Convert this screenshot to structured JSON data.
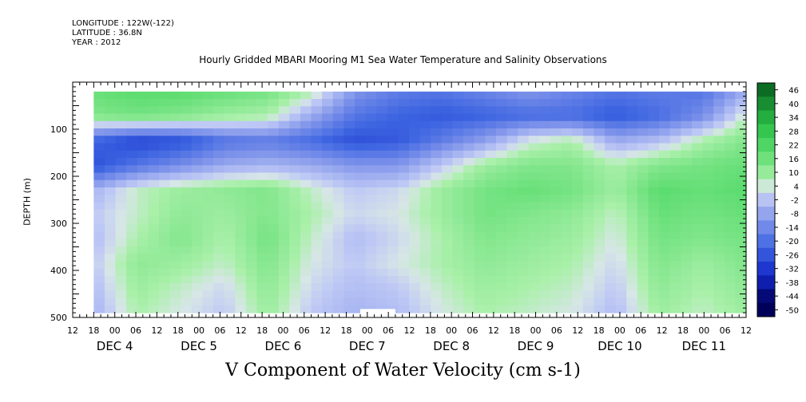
{
  "header": {
    "longitude": "LONGITUDE : 122W(-122)",
    "latitude": "LATITUDE : 36.8N",
    "year": "YEAR : 2012"
  },
  "chart_data": {
    "type": "heatmap",
    "title": "Hourly Gridded MBARI Mooring M1 Sea Water Temperature and Salinity Observations",
    "xlabel": "V Component of Water Velocity (cm s-1)",
    "ylabel": "DEPTH (m)",
    "y_ticks": [
      "100",
      "200",
      "300",
      "400",
      "500"
    ],
    "ylim": [
      500,
      0
    ],
    "y_data_range": [
      20,
      490
    ],
    "x_hour_ticks": [
      "12",
      "18",
      "00",
      "06",
      "12",
      "18",
      "00",
      "06",
      "12",
      "18",
      "00",
      "06",
      "12",
      "18",
      "00",
      "06",
      "12",
      "18",
      "00",
      "06",
      "12",
      "18",
      "00",
      "06",
      "12",
      "18",
      "00",
      "06",
      "12",
      "18",
      "00",
      "06",
      "12"
    ],
    "x_day_labels": [
      "DEC 4",
      "DEC 5",
      "DEC 6",
      "DEC 7",
      "DEC 8",
      "DEC 9",
      "DEC 10",
      "DEC 11"
    ],
    "xlim": [
      "2012-12-03T12:00",
      "2012-12-11T12:00"
    ],
    "x_data_range": [
      "2012-12-03T18:00",
      "2012-12-11T12:00"
    ],
    "colorbar": {
      "labels": [
        "46",
        "40",
        "34",
        "28",
        "22",
        "16",
        "10",
        "4",
        "-2",
        "-8",
        "-14",
        "-20",
        "-26",
        "-32",
        "-38",
        "-44",
        "-50"
      ],
      "min": -50,
      "max": 50
    },
    "value_grid": {
      "depths": [
        25,
        75,
        125,
        175,
        225,
        275,
        325,
        375,
        425,
        475
      ],
      "times": [
        "2012-12-03T18:00",
        "2012-12-04T06:00",
        "2012-12-04T18:00",
        "2012-12-05T06:00",
        "2012-12-05T18:00",
        "2012-12-06T06:00",
        "2012-12-06T18:00",
        "2012-12-07T06:00",
        "2012-12-07T18:00",
        "2012-12-08T06:00",
        "2012-12-08T18:00",
        "2012-12-09T06:00",
        "2012-12-09T18:00",
        "2012-12-10T06:00",
        "2012-12-10T18:00",
        "2012-12-11T06:00"
      ],
      "values": [
        [
          14,
          16,
          16,
          14,
          12,
          4,
          -14,
          -20,
          -22,
          -18,
          -14,
          -18,
          -22,
          -20,
          -22,
          -10
        ],
        [
          10,
          12,
          10,
          6,
          4,
          -10,
          -22,
          -26,
          -28,
          -26,
          -24,
          -24,
          -28,
          -24,
          -16,
          2
        ],
        [
          -26,
          -32,
          -30,
          -22,
          -20,
          -24,
          -30,
          -28,
          -20,
          -12,
          0,
          4,
          -10,
          -6,
          4,
          10
        ],
        [
          -30,
          -22,
          -16,
          -10,
          -8,
          -10,
          -14,
          -14,
          -4,
          6,
          10,
          10,
          4,
          10,
          12,
          14
        ],
        [
          -8,
          2,
          6,
          8,
          10,
          2,
          -4,
          -2,
          6,
          12,
          14,
          12,
          6,
          16,
          14,
          16
        ],
        [
          -4,
          2,
          8,
          6,
          10,
          4,
          -2,
          0,
          6,
          12,
          10,
          8,
          2,
          14,
          12,
          14
        ],
        [
          -6,
          4,
          10,
          4,
          12,
          2,
          -6,
          -2,
          4,
          10,
          8,
          6,
          0,
          12,
          10,
          12
        ],
        [
          -4,
          8,
          6,
          2,
          10,
          0,
          -4,
          0,
          4,
          8,
          6,
          4,
          -2,
          10,
          6,
          10
        ],
        [
          -6,
          6,
          2,
          -2,
          8,
          -2,
          -6,
          -4,
          2,
          6,
          4,
          2,
          -4,
          8,
          4,
          8
        ],
        [
          -8,
          4,
          0,
          -4,
          6,
          -4,
          -8,
          -6,
          0,
          4,
          2,
          0,
          -6,
          6,
          2,
          6
        ]
      ]
    },
    "missing_data": {
      "x": [
        "2012-12-06T22:00",
        "2012-12-07T08:00"
      ],
      "y": [
        482,
        490
      ]
    }
  }
}
